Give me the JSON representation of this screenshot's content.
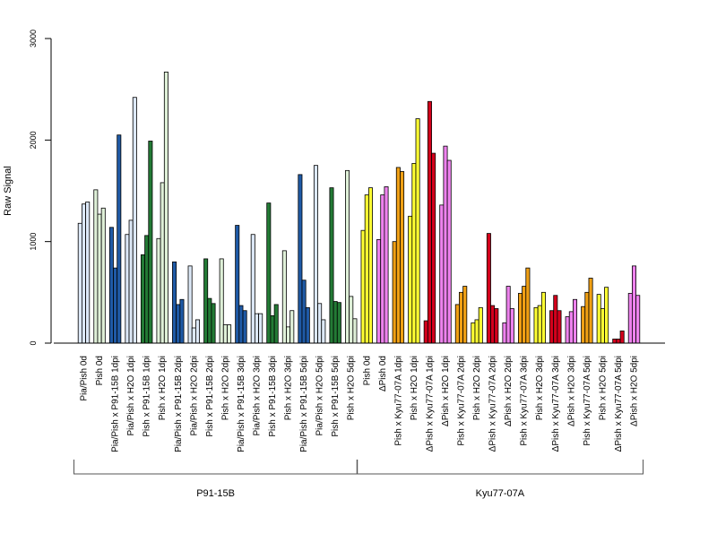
{
  "chart_data": {
    "type": "bar",
    "ylabel": "Raw Signal",
    "ylim": [
      0,
      3000
    ],
    "yticks": [
      0,
      1000,
      2000,
      3000
    ],
    "grid": false,
    "legend": "none",
    "bar_outline_color": "#000000",
    "color_palette": {
      "lightblue": "#dce8f7",
      "blue": "#1f5aa6",
      "green": "#237a35",
      "lightgreen": "#dff0d8",
      "yellow": "#ffff33",
      "violet": "#ee82ee",
      "orange": "#f0a014",
      "red": "#d4001c"
    },
    "groups": [
      {
        "label": "Pia/Pish 0d",
        "values": [
          1180,
          1370,
          1390
        ],
        "color": "lightblue"
      },
      {
        "label": "Pish 0d",
        "values": [
          1510,
          1270,
          1330
        ],
        "color": "lightgreen"
      },
      {
        "label": "Pia/Pish x P91-15B 1dpi",
        "values": [
          1140,
          740,
          2050
        ],
        "color": "blue"
      },
      {
        "label": "Pia/Pish x H2O 1dpi",
        "values": [
          1070,
          1210,
          2420
        ],
        "color": "lightblue"
      },
      {
        "label": "Pish x P91-15B 1dpi",
        "values": [
          870,
          1060,
          1990
        ],
        "color": "green"
      },
      {
        "label": "Pish x H2O 1dpi",
        "values": [
          1030,
          1580,
          2670
        ],
        "color": "lightgreen"
      },
      {
        "label": "Pia/Pish x P91-15B 2dpi",
        "values": [
          800,
          380,
          430
        ],
        "color": "blue"
      },
      {
        "label": "Pia/Pish x H2O 2dpi",
        "values": [
          760,
          150,
          230
        ],
        "color": "lightblue"
      },
      {
        "label": "Pish x P91-15B 2dpi",
        "values": [
          830,
          440,
          390
        ],
        "color": "green"
      },
      {
        "label": "Pish x H2O 2dpi",
        "values": [
          830,
          180,
          180
        ],
        "color": "lightgreen"
      },
      {
        "label": "Pia/Pish x P91-15B 3dpi",
        "values": [
          1160,
          370,
          320
        ],
        "color": "blue"
      },
      {
        "label": "Pia/Pish x H2O 3dpi",
        "values": [
          1070,
          290,
          290
        ],
        "color": "lightblue"
      },
      {
        "label": "Pish x P91-15B 3dpi",
        "values": [
          1380,
          270,
          380
        ],
        "color": "green"
      },
      {
        "label": "Pish x H2O 3dpi",
        "values": [
          910,
          160,
          320
        ],
        "color": "lightgreen"
      },
      {
        "label": "Pia/Pish x P91-15B 5dpi",
        "values": [
          1660,
          620,
          350
        ],
        "color": "blue"
      },
      {
        "label": "Pia/Pish x H2O 5dpi",
        "values": [
          1750,
          390,
          230
        ],
        "color": "lightblue"
      },
      {
        "label": "Pish x P91-15B 5dpi",
        "values": [
          1530,
          410,
          400
        ],
        "color": "green"
      },
      {
        "label": "Pish x H2O 5dpi",
        "values": [
          1700,
          460,
          240
        ],
        "color": "lightgreen"
      },
      {
        "label": "Pish 0d",
        "values": [
          1110,
          1460,
          1530
        ],
        "color": "yellow"
      },
      {
        "label": "ΔPish 0d",
        "values": [
          1020,
          1460,
          1540
        ],
        "color": "violet"
      },
      {
        "label": "Pish x Kyu77-07A 1dpi",
        "values": [
          1000,
          1730,
          1690
        ],
        "color": "orange"
      },
      {
        "label": "Pish x H2O 1dpi",
        "values": [
          1250,
          1770,
          2210
        ],
        "color": "yellow"
      },
      {
        "label": "ΔPish x Kyu77-07A 1dpi",
        "values": [
          220,
          2380,
          1870
        ],
        "color": "red"
      },
      {
        "label": "ΔPish x H2O 1dpi",
        "values": [
          1360,
          1940,
          1800
        ],
        "color": "violet"
      },
      {
        "label": "Pish x Kyu77-07A 2dpi",
        "values": [
          380,
          500,
          560
        ],
        "color": "orange"
      },
      {
        "label": "Pish x H2O 2dpi",
        "values": [
          200,
          230,
          350
        ],
        "color": "yellow"
      },
      {
        "label": "ΔPish x Kyu77-07A 2dpi",
        "values": [
          1080,
          370,
          340
        ],
        "color": "red"
      },
      {
        "label": "ΔPish x H2O 2dpi",
        "values": [
          200,
          560,
          340
        ],
        "color": "violet"
      },
      {
        "label": "Pish x Kyu77-07A 3dpi",
        "values": [
          490,
          560,
          740
        ],
        "color": "orange"
      },
      {
        "label": "Pish x H2O 3dpi",
        "values": [
          350,
          370,
          500
        ],
        "color": "yellow"
      },
      {
        "label": "ΔPish x Kyu77-07A 3dpi",
        "values": [
          320,
          470,
          320
        ],
        "color": "red"
      },
      {
        "label": "ΔPish x H2O 3dpi",
        "values": [
          260,
          310,
          430
        ],
        "color": "violet"
      },
      {
        "label": "Pish x Kyu77-07A 5dpi",
        "values": [
          360,
          500,
          640
        ],
        "color": "orange"
      },
      {
        "label": "Pish x H2O 5dpi",
        "values": [
          480,
          340,
          550
        ],
        "color": "yellow"
      },
      {
        "label": "ΔPish x Kyu77-07A 5dpi",
        "values": [
          40,
          40,
          120
        ],
        "color": "red"
      },
      {
        "label": "ΔPish x H2O 5dpi",
        "values": [
          490,
          760,
          470
        ],
        "color": "violet"
      }
    ],
    "strains": [
      {
        "label": "P91-15B",
        "first_group": 0,
        "last_group": 17
      },
      {
        "label": "Kyu77-07A",
        "first_group": 18,
        "last_group": 35
      }
    ]
  }
}
